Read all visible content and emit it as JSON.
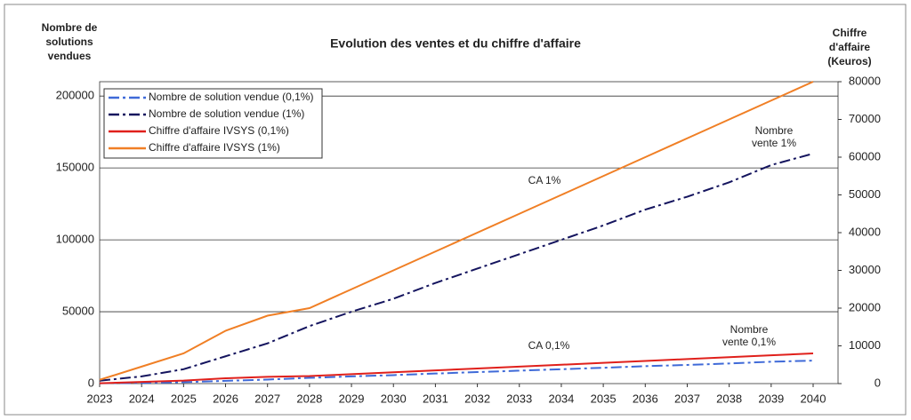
{
  "chart_data": {
    "type": "line",
    "title": "Evolution des ventes et du chiffre d'affaire",
    "y_label": [
      "Nombre de",
      "solutions",
      "vendues"
    ],
    "y2_label": [
      "Chiffre",
      "d'affaire",
      "(Keuros)"
    ],
    "categories": [
      "2023",
      "2024",
      "2025",
      "2026",
      "2027",
      "2028",
      "2029",
      "2030",
      "2031",
      "2032",
      "2033",
      "2034",
      "2035",
      "2036",
      "2037",
      "2038",
      "2039",
      "2040"
    ],
    "ylim": [
      0,
      210000
    ],
    "yticks": [
      0,
      50000,
      100000,
      150000,
      200000
    ],
    "y2lim": [
      0,
      80000
    ],
    "y2ticks": [
      0,
      10000,
      20000,
      30000,
      40000,
      50000,
      60000,
      70000,
      80000
    ],
    "ytick_color": "#4a6fd0",
    "y2tick_color": "#e0201b",
    "grid": true,
    "legend": "upper left",
    "series": [
      {
        "name": "Nombre de solution vendue (0,1%)",
        "color": "#3f6ad8",
        "style": "dash-dot",
        "values": [
          200,
          500,
          1000,
          1900,
          2800,
          4000,
          5000,
          5900,
          7000,
          8000,
          9000,
          10000,
          11000,
          12100,
          13000,
          14000,
          15200,
          16000
        ]
      },
      {
        "name": "Nombre de solution vendue (1%)",
        "color": "#14145e",
        "style": "dash-dot",
        "values": [
          2000,
          5000,
          10000,
          19000,
          28000,
          40000,
          50000,
          59000,
          70000,
          80000,
          90000,
          100000,
          110000,
          121000,
          130000,
          140000,
          152000,
          160000
        ]
      },
      {
        "name": "Chiffre d'affaire IVSYS (0,1%)",
        "color": "#e0201b",
        "style": "solid",
        "axis": "y2",
        "values": [
          100,
          450,
          800,
          1400,
          1800,
          2000,
          2500,
          3000,
          3500,
          4000,
          4500,
          5000,
          5500,
          6000,
          6500,
          7000,
          7500,
          8000
        ]
      },
      {
        "name": "Chiffre d'affaire IVSYS (1%)",
        "color": "#f07f25",
        "style": "solid",
        "axis": "y2",
        "values": [
          1000,
          4500,
          8000,
          14000,
          18000,
          20000,
          25000,
          30000,
          35000,
          40000,
          45000,
          50000,
          55000,
          60000,
          65000,
          70000,
          75000,
          80000
        ]
      }
    ],
    "annotations": [
      {
        "lines": [
          "CA 1%"
        ],
        "color": "#f07f25"
      },
      {
        "lines": [
          "Nombre",
          "vente 1%"
        ],
        "color": "#14145e"
      },
      {
        "lines": [
          "CA 0,1%"
        ],
        "color": "#e0201b"
      },
      {
        "lines": [
          "Nombre",
          "vente 0,1%"
        ],
        "color": "#3f6ad8"
      }
    ]
  }
}
